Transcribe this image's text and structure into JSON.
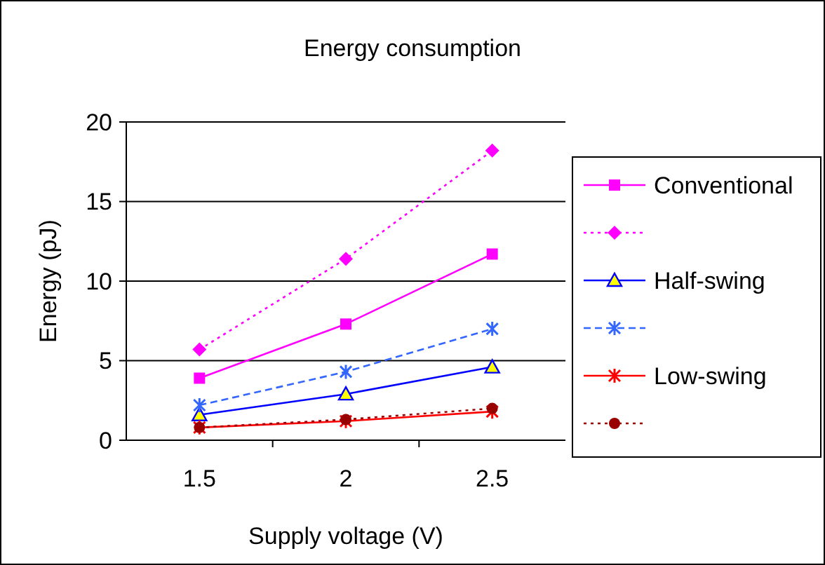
{
  "chart_data": {
    "type": "line",
    "title": "Energy consumption",
    "xlabel": "Supply voltage (V)",
    "ylabel": "Energy (pJ)",
    "categories": [
      "1.5",
      "2",
      "2.5"
    ],
    "ylim": [
      0,
      20
    ],
    "yticks": [
      0,
      5,
      10,
      15,
      20
    ],
    "grid": "y",
    "legend": "right",
    "series": [
      {
        "name": "Conventional",
        "color": "#ff00ff",
        "values": [
          3.9,
          7.3,
          11.7
        ],
        "marker": "square",
        "line_style": "solid"
      },
      {
        "color": "#ff00ff",
        "values": [
          5.7,
          11.4,
          18.2
        ],
        "marker": "diamond",
        "line_style": "dotted"
      },
      {
        "name": "Half-swing",
        "color": "#0000ff",
        "values": [
          1.6,
          2.9,
          4.6
        ],
        "marker": "triangle",
        "line_style": "solid"
      },
      {
        "color": "#3366ff",
        "values": [
          2.2,
          4.3,
          7.0
        ],
        "marker": "cross",
        "line_style": "dashed"
      },
      {
        "name": "Low-swing",
        "color": "#ff0000",
        "values": [
          0.8,
          1.2,
          1.8
        ],
        "marker": "cross",
        "line_style": "solid"
      },
      {
        "color": "#990000",
        "values": [
          0.8,
          1.3,
          2.0
        ],
        "marker": "circle",
        "line_style": "dotted"
      }
    ]
  }
}
